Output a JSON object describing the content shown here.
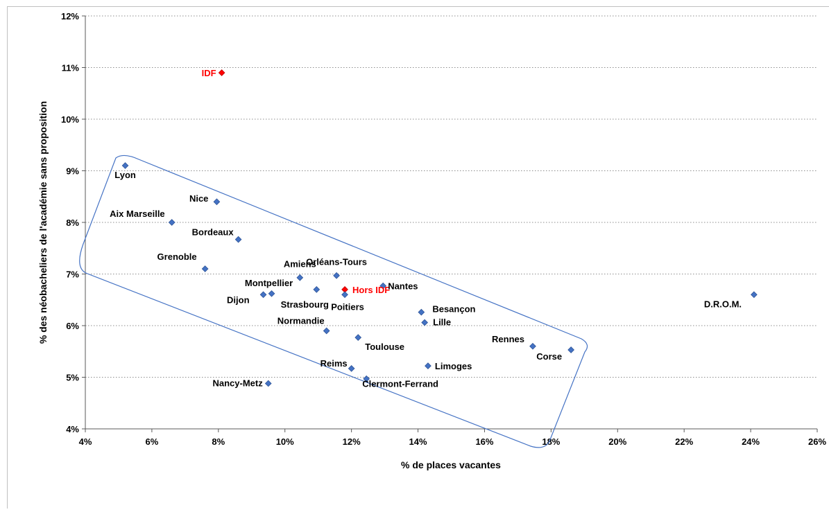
{
  "chart_data": {
    "type": "scatter",
    "xlabel": "% de places vacantes",
    "ylabel": "% des néobacheliers de l'académie sans proposition",
    "xlim": [
      4,
      26
    ],
    "ylim": [
      4,
      12
    ],
    "x_ticks": [
      "4%",
      "6%",
      "8%",
      "10%",
      "12%",
      "14%",
      "16%",
      "18%",
      "20%",
      "22%",
      "24%",
      "26%"
    ],
    "y_ticks": [
      "4%",
      "5%",
      "6%",
      "7%",
      "8%",
      "9%",
      "10%",
      "11%",
      "12%"
    ],
    "grid": "horizontal dotted",
    "colors": {
      "default": "#4472C4",
      "highlight": "#FF0000",
      "label_default": "#000000",
      "label_highlight": "#FF0000"
    },
    "points": [
      {
        "label": "IDF",
        "x": 8.1,
        "y": 10.9,
        "highlight": true
      },
      {
        "label": "Lyon",
        "x": 5.2,
        "y": 9.1
      },
      {
        "label": "Nice",
        "x": 7.95,
        "y": 8.4
      },
      {
        "label": "Aix Marseille",
        "x": 6.6,
        "y": 8.0
      },
      {
        "label": "Bordeaux",
        "x": 8.6,
        "y": 7.67
      },
      {
        "label": "Grenoble",
        "x": 7.6,
        "y": 7.1
      },
      {
        "label": "Amiens",
        "x": 10.45,
        "y": 6.93
      },
      {
        "label": "Orléans-Tours",
        "x": 11.55,
        "y": 6.97
      },
      {
        "label": "Montpellier",
        "x": 9.6,
        "y": 6.62
      },
      {
        "label": "Dijon",
        "x": 9.35,
        "y": 6.6
      },
      {
        "label": "Strasbourg",
        "x": 10.95,
        "y": 6.7
      },
      {
        "label": "Hors IDF",
        "x": 11.8,
        "y": 6.7,
        "highlight": true
      },
      {
        "label": "Poitiers",
        "x": 11.8,
        "y": 6.6
      },
      {
        "label": "Nantes",
        "x": 12.95,
        "y": 6.77
      },
      {
        "label": "Besançon",
        "x": 14.1,
        "y": 6.26
      },
      {
        "label": "Lille",
        "x": 14.2,
        "y": 6.06
      },
      {
        "label": "Normandie",
        "x": 11.25,
        "y": 5.9
      },
      {
        "label": "Toulouse",
        "x": 12.2,
        "y": 5.77
      },
      {
        "label": "Rennes",
        "x": 17.45,
        "y": 5.6
      },
      {
        "label": "Corse",
        "x": 18.6,
        "y": 5.53
      },
      {
        "label": "Reims",
        "x": 12.0,
        "y": 5.17
      },
      {
        "label": "Limoges",
        "x": 14.3,
        "y": 5.22
      },
      {
        "label": "Clermont-Ferrand",
        "x": 12.45,
        "y": 4.97
      },
      {
        "label": "Nancy-Metz",
        "x": 9.5,
        "y": 4.88
      },
      {
        "label": "D.R.O.M.",
        "x": 24.1,
        "y": 6.6
      }
    ]
  }
}
